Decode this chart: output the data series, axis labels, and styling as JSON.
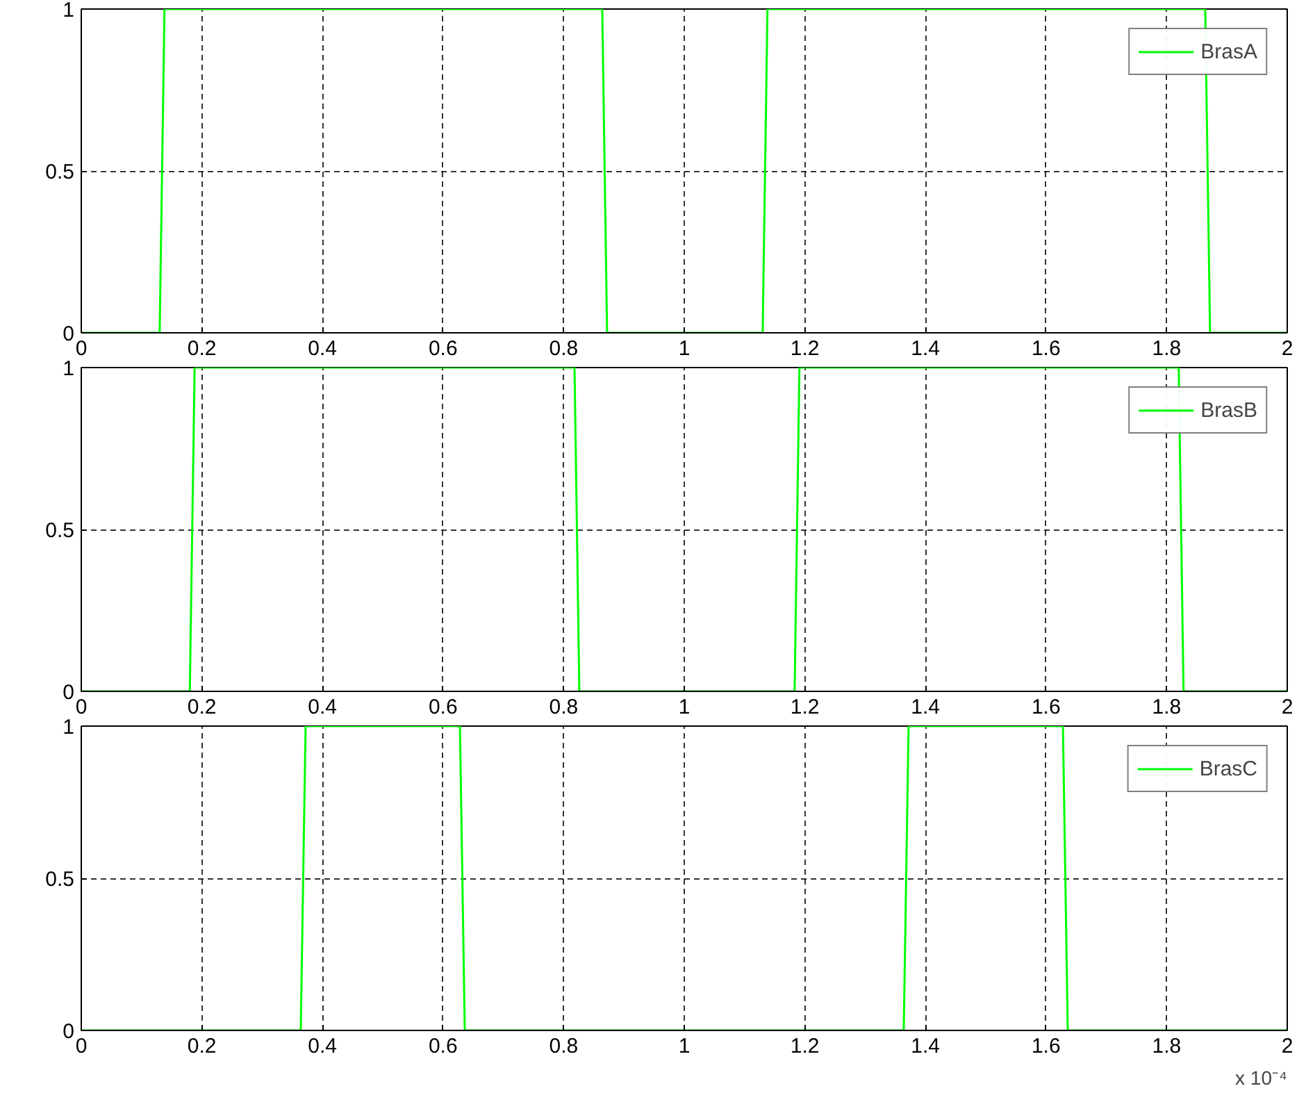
{
  "chart_data": [
    {
      "type": "line",
      "x": [
        0,
        0.13,
        0.138,
        0.864,
        0.872,
        1.13,
        1.138,
        1.864,
        1.872,
        2
      ],
      "series": [
        {
          "name": "BrasA",
          "color": "#00ff00",
          "values": [
            0,
            0,
            1,
            1,
            0,
            0,
            1,
            1,
            0,
            0
          ]
        }
      ],
      "xlim": [
        0,
        2
      ],
      "xticks": [
        0,
        0.2,
        0.4,
        0.6,
        0.8,
        1,
        1.2,
        1.4,
        1.6,
        1.8,
        2
      ],
      "ylim": [
        0,
        1
      ],
      "yticks": [
        0,
        0.5,
        1
      ],
      "grid": true,
      "legend": "top right",
      "line_style": "solid"
    },
    {
      "type": "line",
      "x": [
        0,
        0.18,
        0.188,
        0.818,
        0.826,
        1.183,
        1.191,
        1.82,
        1.828,
        2
      ],
      "series": [
        {
          "name": "BrasB",
          "color": "#00ff00",
          "values": [
            0,
            0,
            1,
            1,
            0,
            0,
            1,
            1,
            0,
            0
          ]
        }
      ],
      "xlim": [
        0,
        2
      ],
      "xticks": [
        0,
        0.2,
        0.4,
        0.6,
        0.8,
        1,
        1.2,
        1.4,
        1.6,
        1.8,
        2
      ],
      "ylim": [
        0,
        1
      ],
      "yticks": [
        0,
        0.5,
        1
      ],
      "grid": true,
      "legend": "top right",
      "line_style": "solid"
    },
    {
      "type": "line",
      "x": [
        0,
        0.364,
        0.372,
        0.628,
        0.636,
        1.364,
        1.372,
        1.628,
        1.636,
        2
      ],
      "series": [
        {
          "name": "BrasC",
          "color": "#00ff00",
          "values": [
            0,
            0,
            1,
            1,
            0,
            0,
            1,
            1,
            0,
            0
          ]
        }
      ],
      "xlim": [
        0,
        2
      ],
      "xticks": [
        0,
        0.2,
        0.4,
        0.6,
        0.8,
        1,
        1.2,
        1.4,
        1.6,
        1.8,
        2
      ],
      "ylim": [
        0,
        1
      ],
      "yticks": [
        0,
        0.5,
        1
      ],
      "grid": true,
      "legend": "top right",
      "line_style": "solid",
      "annotations": [
        "x 10⁻⁴"
      ]
    }
  ]
}
